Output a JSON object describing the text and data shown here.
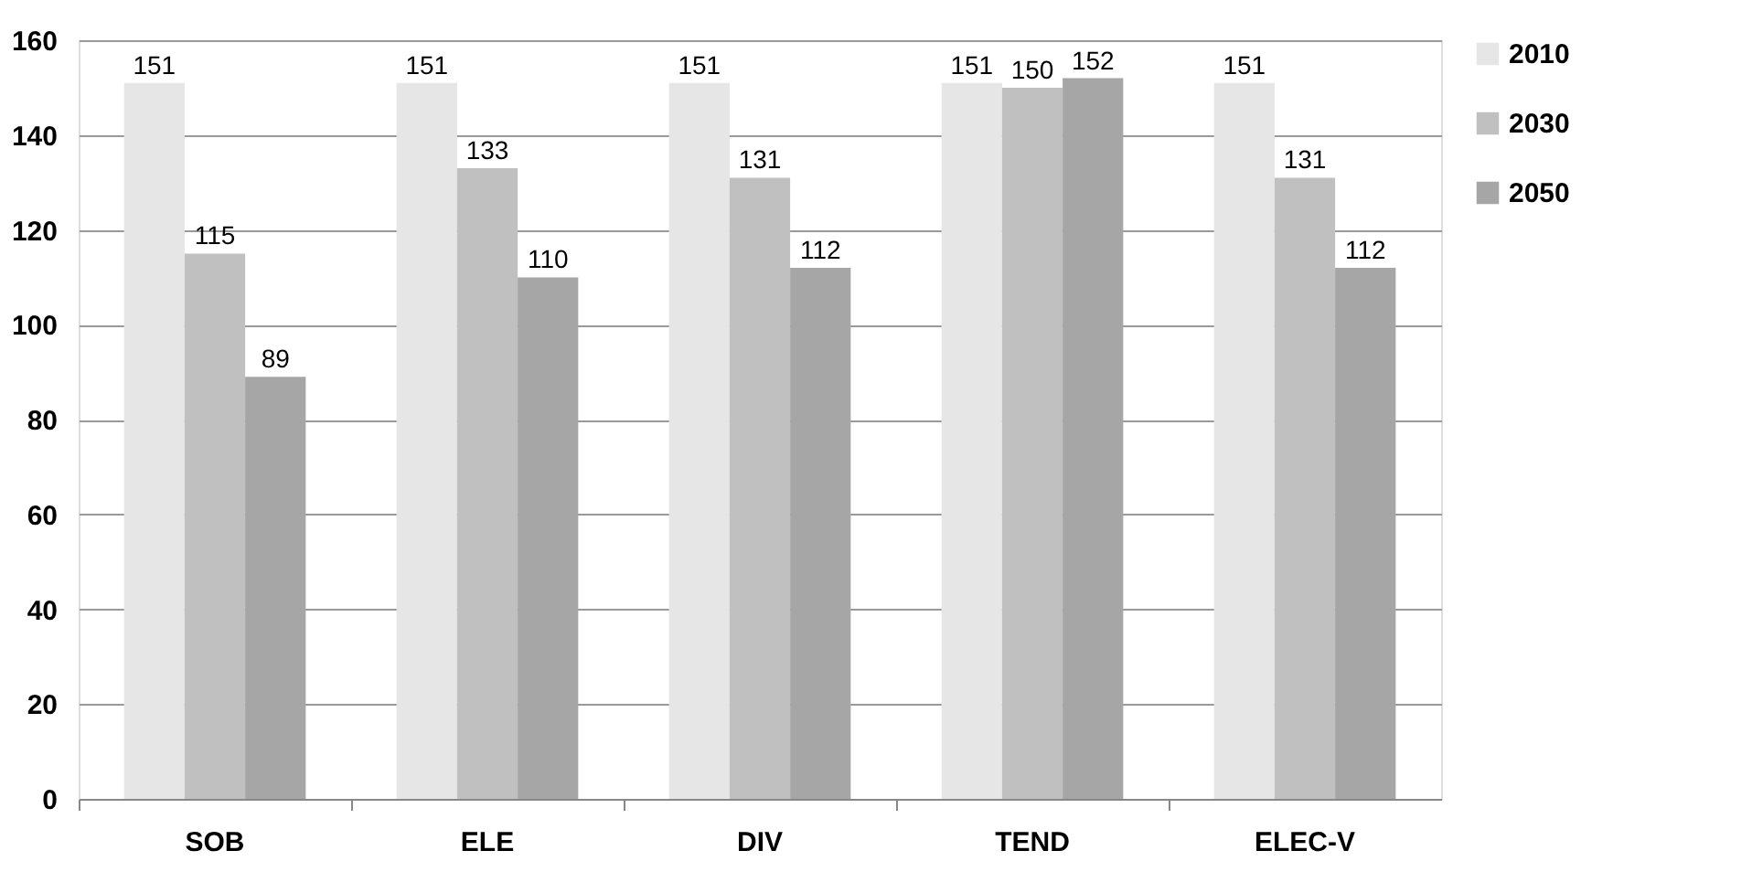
{
  "chart_data": {
    "type": "bar",
    "categories": [
      "SOB",
      "ELE",
      "DIV",
      "TEND",
      "ELEC-V"
    ],
    "series": [
      {
        "name": "2010",
        "color": "#e6e6e6",
        "values": [
          151,
          151,
          151,
          151,
          151
        ]
      },
      {
        "name": "2030",
        "color": "#c0c0c0",
        "values": [
          115,
          133,
          131,
          150,
          131
        ]
      },
      {
        "name": "2050",
        "color": "#a6a6a6",
        "values": [
          89,
          110,
          112,
          152,
          112
        ]
      }
    ],
    "ylim": [
      0,
      160
    ],
    "yticks": [
      0,
      20,
      40,
      60,
      80,
      100,
      120,
      140,
      160
    ],
    "grid": "y",
    "legend": "right",
    "data_labels": true
  }
}
